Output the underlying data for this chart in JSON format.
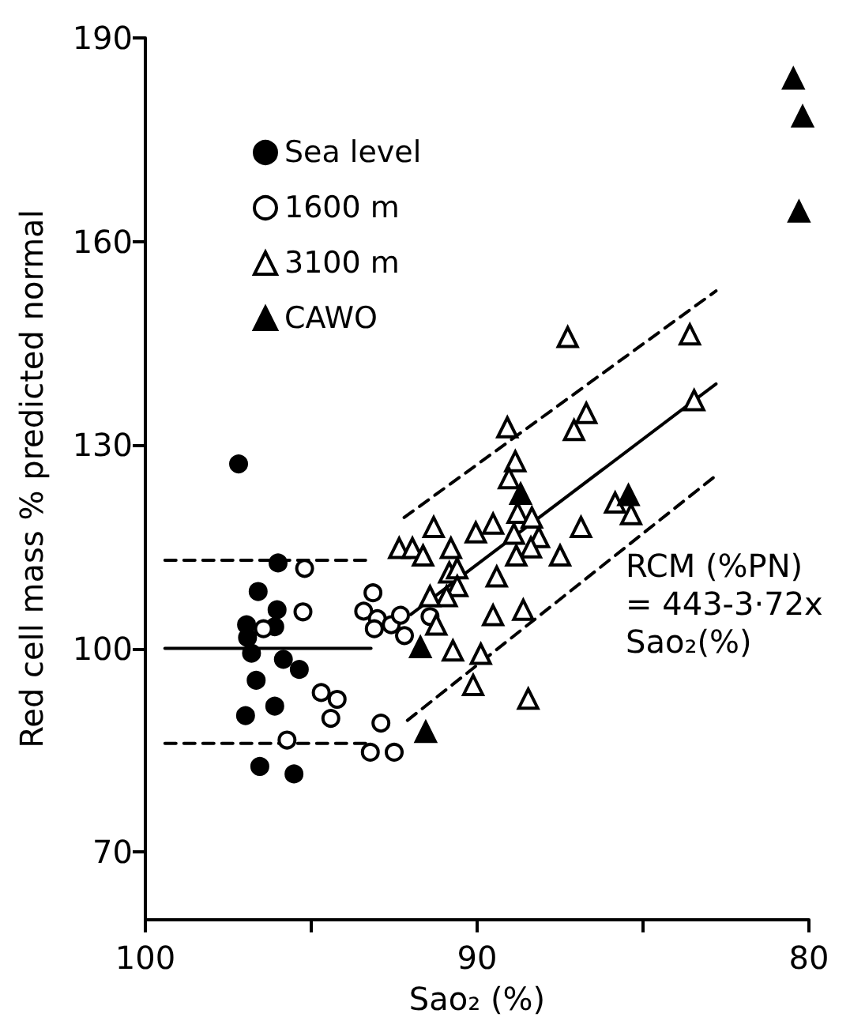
{
  "chart_data": {
    "type": "scatter",
    "xlabel": "Sao₂ (%)",
    "ylabel": "Red cell mass % predicted normal",
    "xlim": [
      100,
      80
    ],
    "xticks": [
      100,
      {
        "value": 95,
        "label": null
      },
      90,
      {
        "value": 85,
        "label": null
      },
      80
    ],
    "ylim": [
      60,
      190
    ],
    "yticks": [
      70,
      100,
      130,
      160,
      190
    ],
    "grid": false,
    "legend": "top left",
    "annotations": [
      "RCM (%PN)\n= 443-3·72x\nSao₂(%)"
    ],
    "series": [
      {
        "name": "Sea level",
        "marker": "circle",
        "color": "#000000",
        "x": [
          97.19,
          96.0,
          96.6,
          96.03,
          96.95,
          96.1,
          96.92,
          96.8,
          95.84,
          95.36,
          96.66,
          96.1,
          96.98,
          96.55,
          95.52
        ],
        "values": [
          127.2,
          112.6,
          108.4,
          105.7,
          103.5,
          103.2,
          101.6,
          99.3,
          98.4,
          96.9,
          95.3,
          91.5,
          90.1,
          82.6,
          81.5
        ]
      },
      {
        "name": "1600 m",
        "marker": "circle",
        "color": "#ffffff",
        "x": [
          95.2,
          95.25,
          96.44,
          93.14,
          93.42,
          93.01,
          93.1,
          92.59,
          92.31,
          92.19,
          91.42,
          94.7,
          94.22,
          94.41,
          95.73,
          92.9,
          93.22,
          92.5
        ],
        "values": [
          111.8,
          105.4,
          102.9,
          108.2,
          105.5,
          104.4,
          102.9,
          103.5,
          104.9,
          101.9,
          104.7,
          93.5,
          92.5,
          89.7,
          86.5,
          89.0,
          84.7,
          84.7
        ]
      },
      {
        "name": "3100 m",
        "marker": "triangle",
        "color": "#ffffff",
        "x": [
          87.27,
          86.71,
          87.08,
          89.09,
          88.85,
          89.04,
          91.31,
          89.52,
          88.78,
          88.35,
          86.87,
          85.84,
          85.36,
          90.04,
          83.59,
          83.46,
          92.35,
          91.95,
          91.63,
          90.79,
          88.89,
          88.14,
          88.38,
          88.82,
          87.5,
          90.84,
          90.6,
          89.41,
          90.6,
          90.92,
          91.42,
          91.23,
          89.52,
          88.61,
          90.73,
          89.89,
          90.12,
          88.46
        ],
        "values": [
          145.9,
          134.7,
          132.2,
          132.6,
          127.6,
          125.1,
          117.9,
          118.4,
          120.0,
          119.3,
          117.9,
          121.5,
          119.8,
          117.1,
          146.3,
          136.6,
          114.8,
          114.8,
          113.7,
          114.8,
          116.9,
          116.4,
          114.9,
          113.7,
          113.7,
          111.2,
          111.8,
          110.6,
          109.2,
          107.7,
          107.7,
          103.5,
          104.9,
          105.7,
          99.7,
          99.2,
          94.6,
          92.6
        ]
      },
      {
        "name": "CAWO",
        "marker": "triangle",
        "color": "#000000",
        "x": [
          80.47,
          80.19,
          80.3,
          88.69,
          85.44,
          91.71,
          91.55
        ],
        "values": [
          184.0,
          178.4,
          164.4,
          122.8,
          122.6,
          100.2,
          87.7
        ]
      },
      {
        "type": "line",
        "marker": "none",
        "line_style": "solid",
        "color": "#000000",
        "x": [
          99.41,
          93.2
        ],
        "values": [
          100,
          100
        ]
      },
      {
        "type": "line",
        "marker": "none",
        "line_style": "dashed",
        "color": "#000000",
        "x": [
          99.41,
          93.2
        ],
        "values": [
          113,
          113
        ]
      },
      {
        "type": "line",
        "marker": "none",
        "line_style": "dashed",
        "color": "#000000",
        "x": [
          99.41,
          93.2
        ],
        "values": [
          86,
          86
        ]
      },
      {
        "type": "line",
        "marker": "none",
        "line_style": "solid",
        "color": "#000000",
        "x": [
          92.0,
          82.8
        ],
        "values": [
          105,
          139
        ]
      },
      {
        "type": "line",
        "marker": "none",
        "line_style": "dashed",
        "color": "#000000",
        "x": [
          92.2,
          82.8
        ],
        "values": [
          119.3,
          152.7
        ]
      },
      {
        "type": "line",
        "marker": "none",
        "line_style": "dashed",
        "color": "#000000",
        "x": [
          92.1,
          82.8
        ],
        "values": [
          89.4,
          125.5
        ]
      }
    ]
  }
}
